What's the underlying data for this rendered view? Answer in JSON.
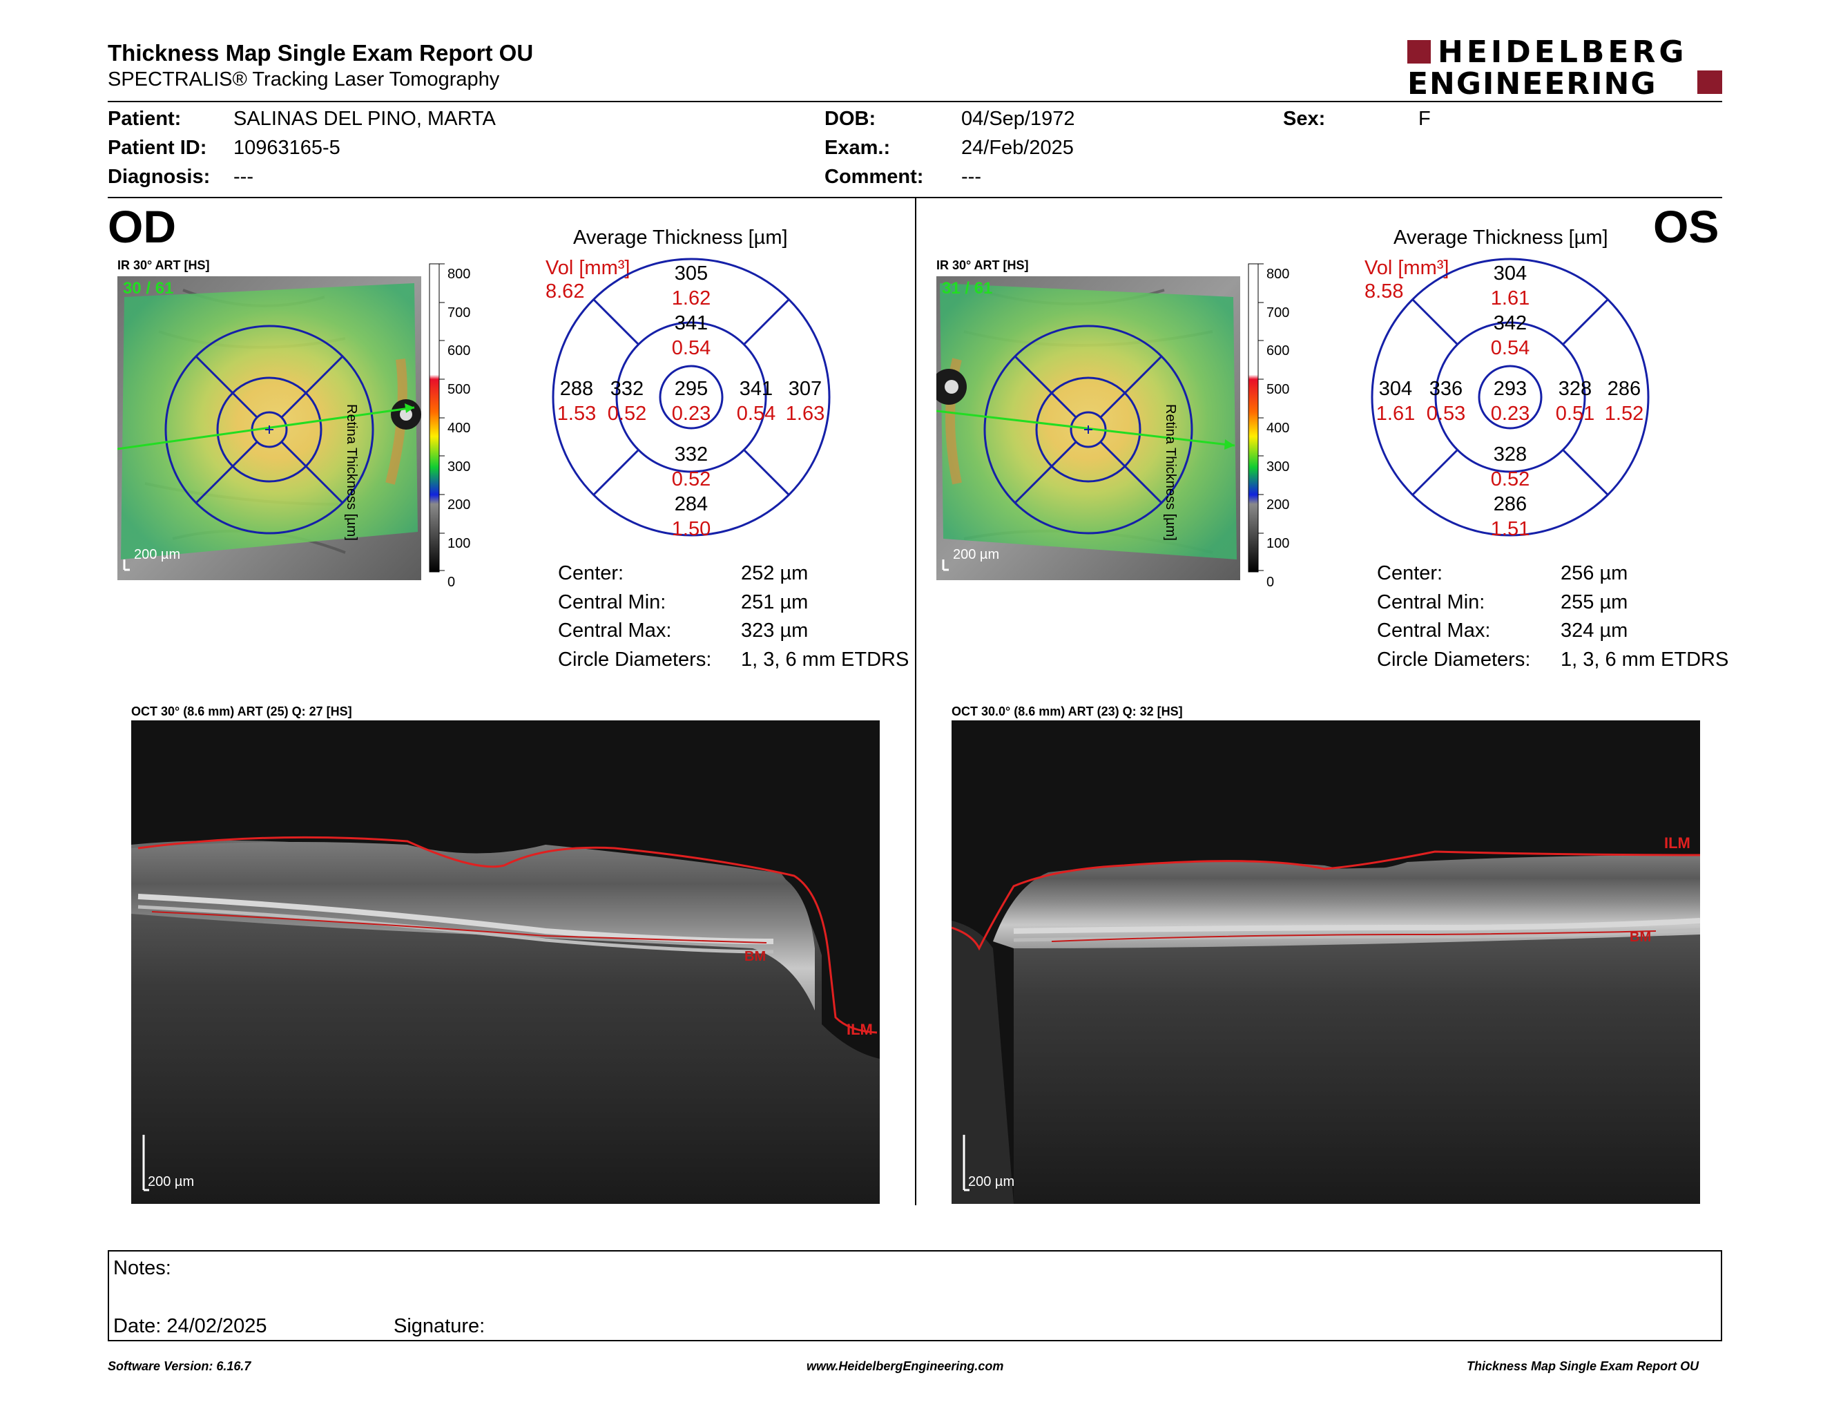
{
  "header": {
    "title": "Thickness Map Single Exam Report OU",
    "subtitle": "SPECTRALIS® Tracking Laser Tomography",
    "logo_line1": "HEIDELBERG",
    "logo_line2": "ENGINEERING",
    "brand_color": "#8b1a2b"
  },
  "patient": {
    "patient_label": "Patient:",
    "patient_value": "SALINAS DEL PINO, MARTA",
    "id_label": "Patient ID:",
    "id_value": "10963165-5",
    "diagnosis_label": "Diagnosis:",
    "diagnosis_value": "---",
    "dob_label": "DOB:",
    "dob_value": "04/Sep/1972",
    "exam_label": "Exam.:",
    "exam_value": "24/Feb/2025",
    "comment_label": "Comment:",
    "comment_value": "---",
    "sex_label": "Sex:",
    "sex_value": "F"
  },
  "od": {
    "eye": "OD",
    "ir_caption": "IR 30° ART [HS]",
    "frames": "30 / 61",
    "scale": "200 µm",
    "avg_title": "Average Thickness [µm]",
    "vol_label": "Vol [mm³]",
    "vol_value": "8.62",
    "grid": {
      "center": {
        "t": "295",
        "v": "0.23"
      },
      "inner_sup": {
        "t": "341",
        "v": "0.54"
      },
      "inner_inf": {
        "t": "332",
        "v": "0.52"
      },
      "inner_left": {
        "t": "332",
        "v": "0.52"
      },
      "inner_right": {
        "t": "341",
        "v": "0.54"
      },
      "outer_sup": {
        "t": "305",
        "v": "1.62"
      },
      "outer_inf": {
        "t": "284",
        "v": "1.50"
      },
      "outer_left": {
        "t": "288",
        "v": "1.53"
      },
      "outer_right": {
        "t": "307",
        "v": "1.63"
      }
    },
    "stats": [
      {
        "label": "Center:",
        "value": "252 µm"
      },
      {
        "label": "Central Min:",
        "value": "251 µm"
      },
      {
        "label": "Central Max:",
        "value": "323 µm"
      },
      {
        "label": "Circle Diameters:",
        "value": "1, 3, 6 mm ETDRS"
      }
    ],
    "oct_caption": "OCT 30° (8.6 mm) ART (25) Q: 27 [HS]",
    "oct_scale": "200 µm",
    "ilm": "ILM",
    "bm": "BM"
  },
  "os": {
    "eye": "OS",
    "ir_caption": "IR 30° ART [HS]",
    "frames": "31 / 61",
    "scale": "200 µm",
    "avg_title": "Average Thickness [µm]",
    "vol_label": "Vol [mm³]",
    "vol_value": "8.58",
    "grid": {
      "center": {
        "t": "293",
        "v": "0.23"
      },
      "inner_sup": {
        "t": "342",
        "v": "0.54"
      },
      "inner_inf": {
        "t": "328",
        "v": "0.52"
      },
      "inner_left": {
        "t": "336",
        "v": "0.53"
      },
      "inner_right": {
        "t": "328",
        "v": "0.51"
      },
      "outer_sup": {
        "t": "304",
        "v": "1.61"
      },
      "outer_inf": {
        "t": "286",
        "v": "1.51"
      },
      "outer_left": {
        "t": "304",
        "v": "1.61"
      },
      "outer_right": {
        "t": "286",
        "v": "1.52"
      }
    },
    "stats": [
      {
        "label": "Center:",
        "value": "256 µm"
      },
      {
        "label": "Central Min:",
        "value": "255 µm"
      },
      {
        "label": "Central Max:",
        "value": "324 µm"
      },
      {
        "label": "Circle Diameters:",
        "value": "1, 3, 6 mm ETDRS"
      }
    ],
    "oct_caption": "OCT 30.0° (8.6 mm) ART (23) Q: 32 [HS]",
    "oct_scale": "200 µm",
    "ilm": "ILM",
    "bm": "BM"
  },
  "colorbar": {
    "ticks": [
      "800",
      "700",
      "600",
      "500",
      "400",
      "300",
      "200",
      "100",
      "0"
    ],
    "label": "Retina  Thickness [µm]"
  },
  "notes": {
    "notes_label": "Notes:",
    "date_label": "Date: 24/02/2025",
    "signature_label": "Signature:"
  },
  "footer": {
    "software": "Software Version: 6.16.7",
    "website": "www.HeidelbergEngineering.com",
    "report": "Thickness Map Single Exam Report OU"
  }
}
